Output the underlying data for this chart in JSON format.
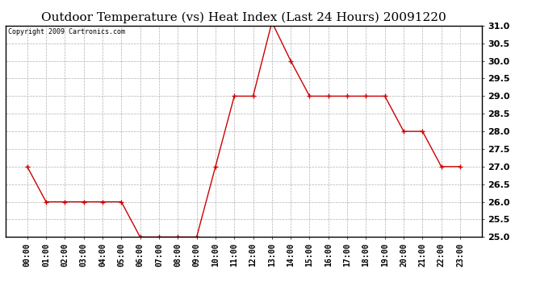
{
  "title": "Outdoor Temperature (vs) Heat Index (Last 24 Hours) 20091220",
  "copyright_text": "Copyright 2009 Cartronics.com",
  "hours": [
    "00:00",
    "01:00",
    "02:00",
    "03:00",
    "04:00",
    "05:00",
    "06:00",
    "07:00",
    "08:00",
    "09:00",
    "10:00",
    "11:00",
    "12:00",
    "13:00",
    "14:00",
    "15:00",
    "16:00",
    "17:00",
    "18:00",
    "19:00",
    "20:00",
    "21:00",
    "22:00",
    "23:00"
  ],
  "values": [
    27.0,
    26.0,
    26.0,
    26.0,
    26.0,
    26.0,
    25.0,
    25.0,
    25.0,
    25.0,
    27.0,
    29.0,
    29.0,
    31.1,
    30.0,
    29.0,
    29.0,
    29.0,
    29.0,
    29.0,
    28.0,
    28.0,
    27.0,
    27.0
  ],
  "ylim": [
    25.0,
    31.0
  ],
  "yticks": [
    25.0,
    25.5,
    26.0,
    26.5,
    27.0,
    27.5,
    28.0,
    28.5,
    29.0,
    29.5,
    30.0,
    30.5,
    31.0
  ],
  "line_color": "#cc0000",
  "marker_color": "#cc0000",
  "grid_color": "#b0b0b0",
  "bg_color": "#ffffff",
  "title_fontsize": 11,
  "copyright_fontsize": 6,
  "tick_fontsize": 7,
  "ytick_fontsize": 8
}
